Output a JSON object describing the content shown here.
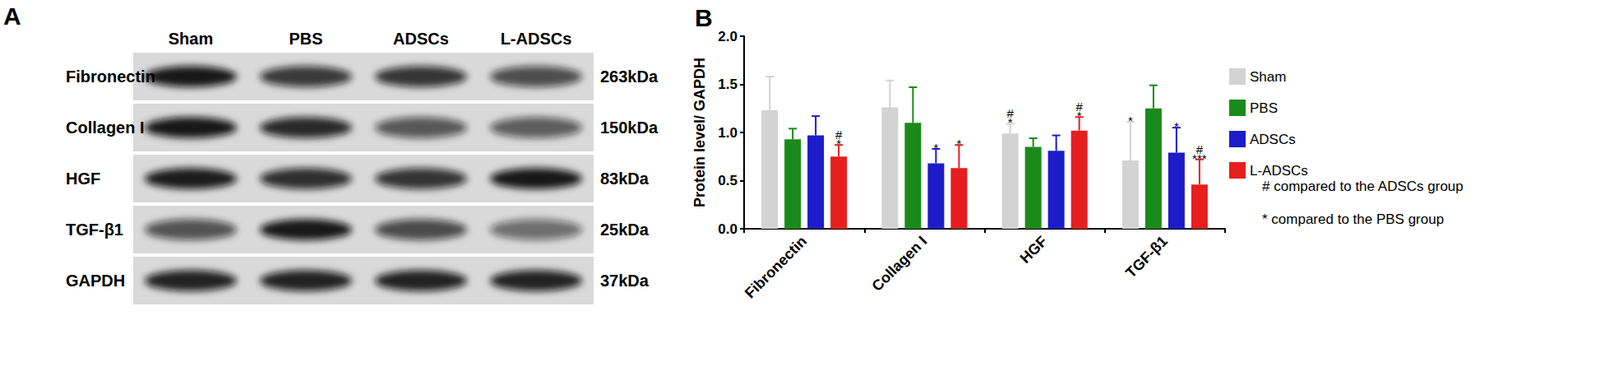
{
  "panel_a": {
    "label": "A",
    "lanes": [
      "Sham",
      "PBS",
      "ADSCs",
      "L-ADSCs"
    ],
    "rows": [
      {
        "protein": "Fibronectin",
        "size": "263kDa"
      },
      {
        "protein": "Collagen I",
        "size": "150kDa"
      },
      {
        "protein": "HGF",
        "size": "83kDa"
      },
      {
        "protein": "TGF-β1",
        "size": "25kDa"
      },
      {
        "protein": "GAPDH",
        "size": "37kDa"
      }
    ]
  },
  "chart_data": {
    "panel_label": "B",
    "type": "bar",
    "ylabel": "Protein level/ GAPDH",
    "categories": [
      "Fibronectin",
      "Collagen I",
      "HGF",
      "TGF-β1"
    ],
    "series": [
      {
        "name": "Sham",
        "color": "#d3d3d3",
        "values": [
          1.23,
          1.26,
          0.99,
          0.71
        ],
        "errors": [
          0.35,
          0.28,
          0.1,
          0.4
        ],
        "annotations": [
          null,
          null,
          [
            "#",
            "*"
          ],
          [
            "*"
          ]
        ]
      },
      {
        "name": "PBS",
        "color": "#1a8a1a",
        "values": [
          0.93,
          1.1,
          0.85,
          1.25
        ],
        "errors": [
          0.11,
          0.37,
          0.09,
          0.24
        ],
        "annotations": [
          null,
          null,
          null,
          null
        ]
      },
      {
        "name": "ADSCs",
        "color": "#1c1cc8",
        "values": [
          0.97,
          0.68,
          0.81,
          0.79
        ],
        "errors": [
          0.2,
          0.15,
          0.16,
          0.26
        ],
        "annotations": [
          null,
          [
            "*"
          ],
          null,
          [
            "*"
          ]
        ]
      },
      {
        "name": "L-ADSCs",
        "color": "#e61e1e",
        "values": [
          0.75,
          0.63,
          1.02,
          0.46
        ],
        "errors": [
          0.12,
          0.24,
          0.14,
          0.26
        ],
        "annotations": [
          [
            "#",
            "*"
          ],
          [
            "*"
          ],
          [
            "#",
            "*"
          ],
          [
            "#",
            "***"
          ]
        ]
      }
    ],
    "ylim": [
      0,
      2
    ],
    "yticks": [
      {
        "value": 0,
        "label": "0.0"
      },
      {
        "value": 0.5,
        "label": "0.5"
      },
      {
        "value": 1,
        "label": "1.0"
      },
      {
        "value": 1.5,
        "label": "1.5"
      },
      {
        "value": 2,
        "label": "2.0"
      }
    ],
    "grid": false,
    "legend": "right",
    "notes": [
      "# compared to the ADSCs group",
      "* compared to the PBS group"
    ]
  }
}
